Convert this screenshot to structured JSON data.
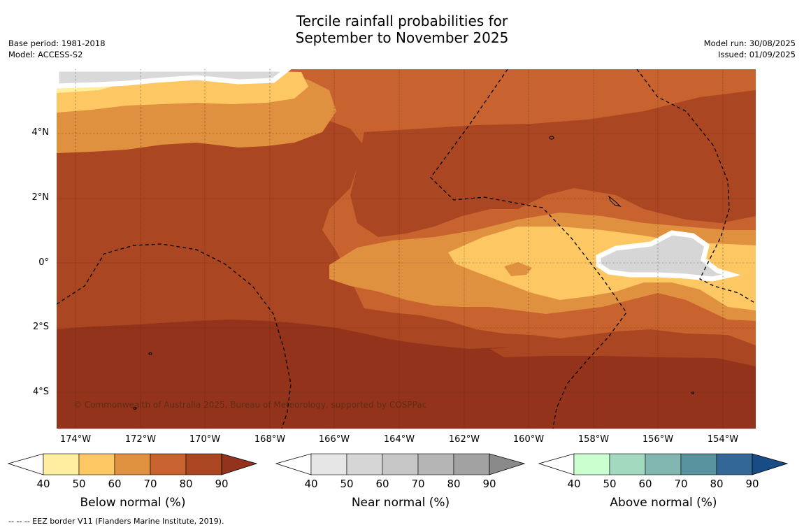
{
  "title_line1": "Tercile rainfall probabilities for",
  "title_line2": "September to November 2025",
  "base_period": "Base period: 1981-2018",
  "model": "Model: ACCESS-S2",
  "model_run": "Model run: 30/08/2025",
  "issued": "Issued: 01/09/2025",
  "copyright": "© Commonwealth of Australia 2025, Bureau of Meteorology, supported by COSPPac",
  "lat_labels": [
    "4°N",
    "2°N",
    "0°",
    "2°S",
    "4°S"
  ],
  "lon_labels": [
    "174°W",
    "172°W",
    "170°W",
    "168°W",
    "166°W",
    "164°W",
    "162°W",
    "160°W",
    "158°W",
    "156°W",
    "154°W"
  ],
  "colorbars": [
    {
      "title": "Below normal (%)",
      "ticks": [
        "40",
        "50",
        "60",
        "70",
        "80",
        "90"
      ],
      "colors": [
        "#ffffff",
        "#ffeea0",
        "#fdc864",
        "#e0913f",
        "#c8622e",
        "#ab4622",
        "#93331c"
      ]
    },
    {
      "title": "Near normal (%)",
      "ticks": [
        "40",
        "50",
        "60",
        "70",
        "80",
        "90"
      ],
      "colors": [
        "#ffffff",
        "#e6e6e6",
        "#d6d6d6",
        "#c7c7c7",
        "#b5b5b5",
        "#a2a2a2",
        "#8a8a8a"
      ]
    },
    {
      "title": "Above normal (%)",
      "ticks": [
        "40",
        "50",
        "60",
        "70",
        "80",
        "90"
      ],
      "colors": [
        "#ffffff",
        "#cbffd0",
        "#a3d9bf",
        "#82b6b0",
        "#5a93a0",
        "#336796",
        "#184c85"
      ]
    }
  ],
  "footnote": "-- -- -- EEZ border V11 (Flanders Marine Institute, 2019)."
}
